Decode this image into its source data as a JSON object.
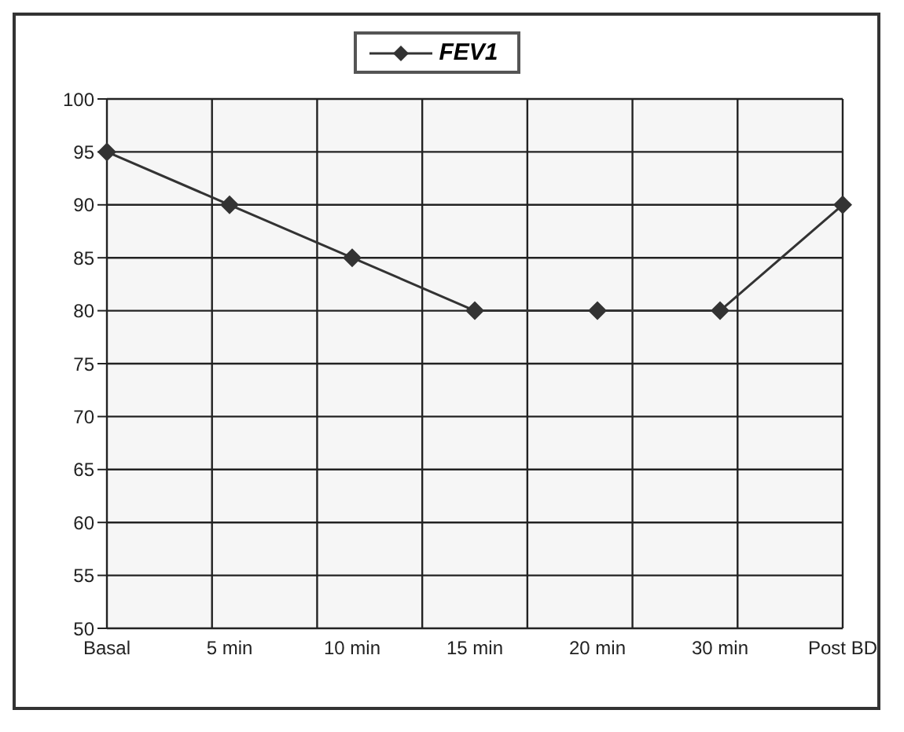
{
  "chart_data": {
    "type": "line",
    "categories": [
      "Basal",
      "5 min",
      "10 min",
      "15 min",
      "20 min",
      "30 min",
      "Post BD"
    ],
    "series": [
      {
        "name": "FEV1",
        "color": "#333333",
        "values": [
          95,
          90,
          85,
          80,
          80,
          80,
          90
        ]
      }
    ],
    "ylim": [
      50,
      100
    ],
    "yticks": [
      50,
      55,
      60,
      65,
      70,
      75,
      80,
      85,
      90,
      95,
      100
    ],
    "grid": true,
    "legend": "top",
    "marker": "diamond",
    "line_style": "solid"
  }
}
